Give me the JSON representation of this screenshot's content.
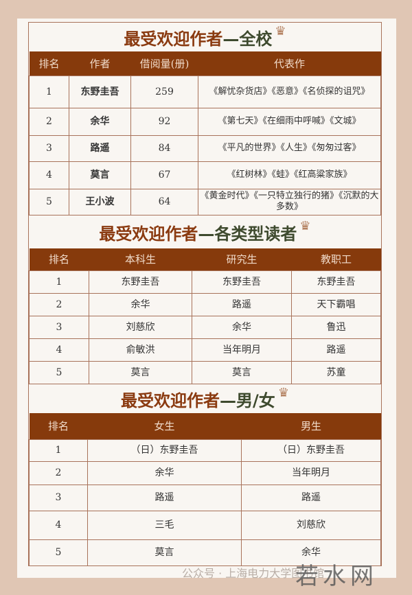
{
  "school": {
    "title": "最受欢迎作者",
    "suffix": "—全校",
    "headers": [
      "排名",
      "作者",
      "借阅量(册)",
      "代表作"
    ],
    "rows": [
      [
        "1",
        "东野圭吾",
        "259",
        "《解忧杂货店》《恶意》《名侦探的诅咒》"
      ],
      [
        "2",
        "余华",
        "92",
        "《第七天》《在细雨中呼喊》《文城》"
      ],
      [
        "3",
        "路遥",
        "84",
        "《平凡的世界》《人生》《匆匆过客》"
      ],
      [
        "4",
        "莫言",
        "67",
        "《红树林》《蛙》《红高粱家族》"
      ],
      [
        "5",
        "王小波",
        "64",
        "《黄金时代》《一只特立独行的猪》《沉默的大多数》"
      ]
    ]
  },
  "reader": {
    "title": "最受欢迎作者",
    "suffix": "—各类型读者",
    "headers": [
      "排名",
      "本科生",
      "研究生",
      "教职工"
    ],
    "rows": [
      [
        "1",
        "东野圭吾",
        "东野圭吾",
        "东野圭吾"
      ],
      [
        "2",
        "余华",
        "路遥",
        "天下霸唱"
      ],
      [
        "3",
        "刘慈欣",
        "余华",
        "鲁迅"
      ],
      [
        "4",
        "俞敏洪",
        "当年明月",
        "路遥"
      ],
      [
        "5",
        "莫言",
        "莫言",
        "苏童"
      ]
    ]
  },
  "gender": {
    "title": "最受欢迎作者",
    "suffix": "—男/女",
    "headers": [
      "排名",
      "女生",
      "男生"
    ],
    "rows": [
      [
        "1",
        "（日）东野圭吾",
        "（日）东野圭吾"
      ],
      [
        "2",
        "余华",
        "当年明月"
      ],
      [
        "3",
        "路遥",
        "路遥"
      ],
      [
        "4",
        "三毛",
        "刘慈欣"
      ],
      [
        "5",
        "莫言",
        "余华"
      ]
    ]
  },
  "watermark": {
    "text": "公众号 · 上海电力大学图书馆",
    "overlay": "若水网"
  },
  "icons": {
    "crown": "crown-icon"
  }
}
